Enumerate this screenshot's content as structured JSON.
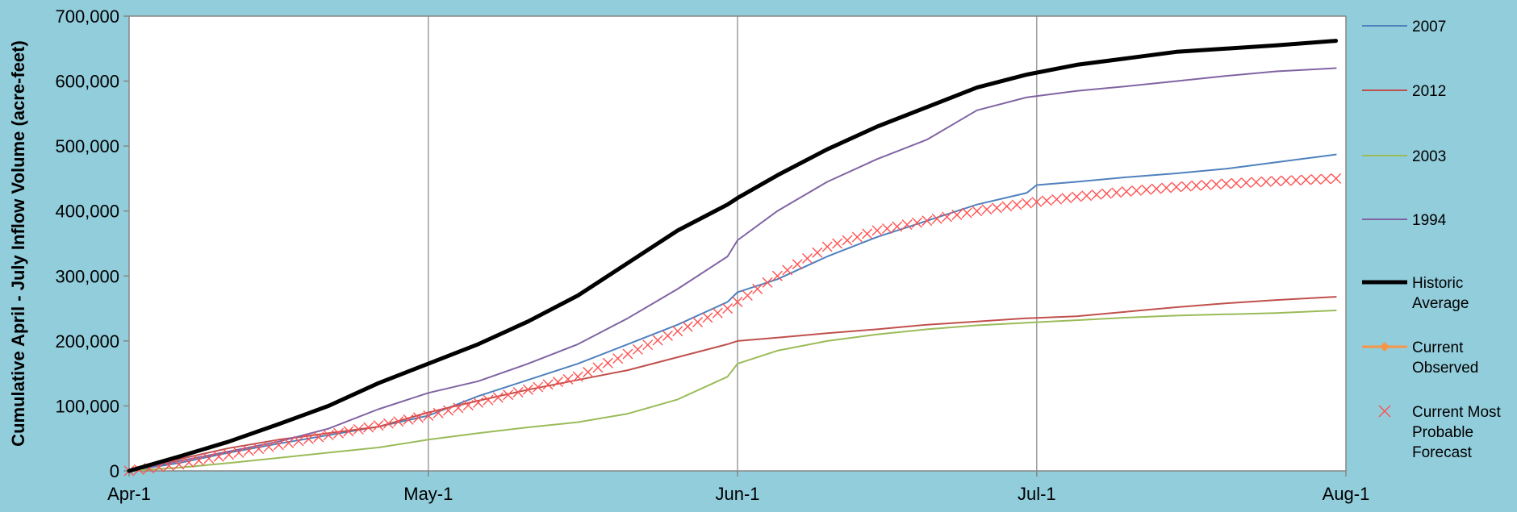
{
  "chart_data": {
    "type": "line",
    "title": "",
    "xlabel": "",
    "ylabel": "Cumulative April - July Inflow Volume (acre-feet)",
    "x_ticks": [
      "Apr-1",
      "May-1",
      "Jun-1",
      "Jul-1",
      "Aug-1"
    ],
    "x_tick_days": [
      0,
      30,
      61,
      91,
      122
    ],
    "xlim": [
      0,
      122
    ],
    "ylim": [
      0,
      700000
    ],
    "y_ticks": [
      0,
      100000,
      200000,
      300000,
      400000,
      500000,
      600000,
      700000
    ],
    "y_tick_labels": [
      "0",
      "100,000",
      "200,000",
      "300,000",
      "400,000",
      "500,000",
      "600,000",
      "700,000"
    ],
    "grid": "vertical",
    "legend_position": "right",
    "x_unit": "days after Apr-1",
    "series": [
      {
        "name": "2007",
        "color": "#4F81BD",
        "style": "line",
        "points": [
          [
            0,
            0
          ],
          [
            5,
            12000
          ],
          [
            10,
            28000
          ],
          [
            15,
            42000
          ],
          [
            20,
            55000
          ],
          [
            25,
            68000
          ],
          [
            30,
            85000
          ],
          [
            35,
            115000
          ],
          [
            40,
            140000
          ],
          [
            45,
            165000
          ],
          [
            50,
            195000
          ],
          [
            55,
            225000
          ],
          [
            60,
            260000
          ],
          [
            61,
            275000
          ],
          [
            65,
            295000
          ],
          [
            70,
            330000
          ],
          [
            75,
            360000
          ],
          [
            80,
            385000
          ],
          [
            85,
            410000
          ],
          [
            90,
            428000
          ],
          [
            91,
            440000
          ],
          [
            95,
            445000
          ],
          [
            100,
            452000
          ],
          [
            105,
            458000
          ],
          [
            110,
            465000
          ],
          [
            115,
            475000
          ],
          [
            121,
            487000
          ]
        ]
      },
      {
        "name": "2012",
        "color": "#C0504D",
        "style": "line",
        "points": [
          [
            0,
            0
          ],
          [
            5,
            18000
          ],
          [
            10,
            35000
          ],
          [
            15,
            48000
          ],
          [
            20,
            58000
          ],
          [
            25,
            68000
          ],
          [
            30,
            90000
          ],
          [
            35,
            108000
          ],
          [
            40,
            125000
          ],
          [
            45,
            140000
          ],
          [
            50,
            155000
          ],
          [
            55,
            175000
          ],
          [
            60,
            195000
          ],
          [
            61,
            200000
          ],
          [
            65,
            205000
          ],
          [
            70,
            212000
          ],
          [
            75,
            218000
          ],
          [
            80,
            225000
          ],
          [
            85,
            230000
          ],
          [
            90,
            235000
          ],
          [
            95,
            238000
          ],
          [
            100,
            245000
          ],
          [
            105,
            252000
          ],
          [
            110,
            258000
          ],
          [
            115,
            263000
          ],
          [
            121,
            268000
          ]
        ]
      },
      {
        "name": "2003",
        "color": "#9BBB59",
        "style": "line",
        "points": [
          [
            0,
            0
          ],
          [
            5,
            5000
          ],
          [
            10,
            12000
          ],
          [
            15,
            20000
          ],
          [
            20,
            28000
          ],
          [
            25,
            36000
          ],
          [
            30,
            48000
          ],
          [
            35,
            58000
          ],
          [
            40,
            67000
          ],
          [
            45,
            75000
          ],
          [
            50,
            88000
          ],
          [
            55,
            110000
          ],
          [
            60,
            145000
          ],
          [
            61,
            165000
          ],
          [
            65,
            185000
          ],
          [
            70,
            200000
          ],
          [
            75,
            210000
          ],
          [
            80,
            218000
          ],
          [
            85,
            224000
          ],
          [
            90,
            228000
          ],
          [
            95,
            232000
          ],
          [
            100,
            236000
          ],
          [
            105,
            239000
          ],
          [
            110,
            241000
          ],
          [
            115,
            243000
          ],
          [
            121,
            247000
          ]
        ]
      },
      {
        "name": "1994",
        "color": "#8064A2",
        "style": "line",
        "points": [
          [
            0,
            0
          ],
          [
            5,
            15000
          ],
          [
            10,
            30000
          ],
          [
            15,
            45000
          ],
          [
            20,
            65000
          ],
          [
            25,
            95000
          ],
          [
            30,
            120000
          ],
          [
            35,
            138000
          ],
          [
            40,
            165000
          ],
          [
            45,
            195000
          ],
          [
            50,
            235000
          ],
          [
            55,
            280000
          ],
          [
            60,
            330000
          ],
          [
            61,
            355000
          ],
          [
            65,
            400000
          ],
          [
            70,
            445000
          ],
          [
            75,
            480000
          ],
          [
            80,
            510000
          ],
          [
            85,
            555000
          ],
          [
            90,
            575000
          ],
          [
            95,
            585000
          ],
          [
            100,
            592000
          ],
          [
            105,
            600000
          ],
          [
            110,
            608000
          ],
          [
            115,
            615000
          ],
          [
            121,
            620000
          ]
        ]
      },
      {
        "name": "Historic Average",
        "color": "#000000",
        "style": "thick",
        "points": [
          [
            0,
            0
          ],
          [
            5,
            22000
          ],
          [
            10,
            45000
          ],
          [
            15,
            72000
          ],
          [
            20,
            100000
          ],
          [
            25,
            135000
          ],
          [
            30,
            165000
          ],
          [
            35,
            195000
          ],
          [
            40,
            230000
          ],
          [
            45,
            270000
          ],
          [
            50,
            320000
          ],
          [
            55,
            370000
          ],
          [
            60,
            410000
          ],
          [
            61,
            420000
          ],
          [
            65,
            455000
          ],
          [
            70,
            495000
          ],
          [
            75,
            530000
          ],
          [
            80,
            560000
          ],
          [
            85,
            590000
          ],
          [
            90,
            610000
          ],
          [
            95,
            625000
          ],
          [
            100,
            635000
          ],
          [
            105,
            645000
          ],
          [
            110,
            650000
          ],
          [
            115,
            655000
          ],
          [
            121,
            662000
          ]
        ]
      },
      {
        "name": "Current Observed",
        "color": "#F79646",
        "style": "marker-line",
        "points": []
      },
      {
        "name": "Current Most Probable Forecast",
        "color": "#FF5050",
        "style": "x-markers",
        "points": [
          [
            0,
            0
          ],
          [
            5,
            10000
          ],
          [
            10,
            25000
          ],
          [
            15,
            40000
          ],
          [
            20,
            55000
          ],
          [
            25,
            70000
          ],
          [
            30,
            85000
          ],
          [
            35,
            105000
          ],
          [
            40,
            125000
          ],
          [
            45,
            145000
          ],
          [
            50,
            180000
          ],
          [
            55,
            215000
          ],
          [
            60,
            250000
          ],
          [
            61,
            260000
          ],
          [
            65,
            300000
          ],
          [
            70,
            345000
          ],
          [
            75,
            370000
          ],
          [
            80,
            385000
          ],
          [
            85,
            400000
          ],
          [
            90,
            412000
          ],
          [
            95,
            422000
          ],
          [
            100,
            430000
          ],
          [
            105,
            437000
          ],
          [
            110,
            442000
          ],
          [
            115,
            446000
          ],
          [
            121,
            450000
          ]
        ]
      }
    ],
    "legend": [
      {
        "series": "2007",
        "lines": [
          "2007"
        ]
      },
      {
        "series": "2012",
        "lines": [
          "2012"
        ]
      },
      {
        "series": "2003",
        "lines": [
          "2003"
        ]
      },
      {
        "series": "1994",
        "lines": [
          "1994"
        ]
      },
      {
        "series": "Historic Average",
        "lines": [
          "Historic",
          "Average"
        ]
      },
      {
        "series": "Current Observed",
        "lines": [
          "Current",
          "Observed"
        ]
      },
      {
        "series": "Current Most Probable Forecast",
        "lines": [
          "Current Most",
          "Probable",
          "Forecast"
        ]
      }
    ]
  }
}
